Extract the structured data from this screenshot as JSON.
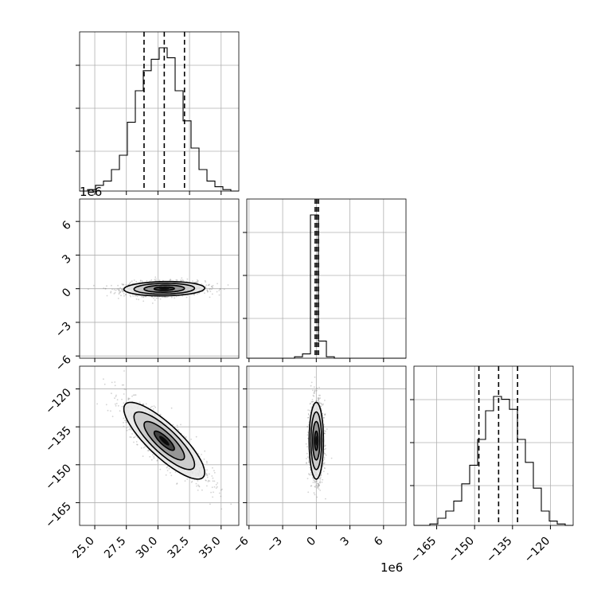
{
  "chart_data": {
    "type": "corner",
    "parameters": [
      {
        "xlim": [
          23.8,
          36.4
        ],
        "ticks": [
          25.0,
          27.5,
          30.0,
          32.5,
          35.0
        ],
        "tick_labels": [
          "25.0",
          "27.5",
          "30.0",
          "32.5",
          "35.0"
        ],
        "quantiles": [
          28.9,
          30.5,
          32.1
        ],
        "hist_edges": [
          23.8,
          24.43,
          25.06,
          25.69,
          26.32,
          26.95,
          27.58,
          28.21,
          28.84,
          29.47,
          30.1,
          30.73,
          31.36,
          31.99,
          32.62,
          33.25,
          33.88,
          34.51,
          35.14,
          35.77,
          36.4
        ],
        "hist_counts": [
          0,
          0.01,
          0.04,
          0.07,
          0.15,
          0.25,
          0.48,
          0.7,
          0.84,
          0.92,
          1.0,
          0.93,
          0.7,
          0.49,
          0.3,
          0.15,
          0.07,
          0.03,
          0.01,
          0
        ]
      },
      {
        "xlim": [
          -6.2,
          8.0
        ],
        "ticks": [
          -6,
          -3,
          0,
          3,
          6
        ],
        "tick_labels": [
          "−6",
          "−3",
          "0",
          "3",
          "6"
        ],
        "offset_label": "1e6",
        "quantiles": [
          -0.1,
          0.05,
          0.2
        ],
        "hist_edges": [
          -6.2,
          -5.49,
          -4.78,
          -4.07,
          -3.36,
          -2.65,
          -1.94,
          -1.23,
          -0.52,
          0.19,
          0.9,
          1.61,
          2.32,
          3.03,
          3.74,
          4.45,
          5.16,
          5.87,
          6.58,
          7.29,
          8.0
        ],
        "hist_counts": [
          0,
          0,
          0,
          0,
          0,
          0,
          0.01,
          0.03,
          1.0,
          0.12,
          0.01,
          0,
          0,
          0,
          0,
          0,
          0,
          0,
          0,
          0
        ]
      },
      {
        "xlim": [
          -174,
          -111
        ],
        "ticks": [
          -165,
          -150,
          -135,
          -120
        ],
        "tick_labels": [
          "−165",
          "−150",
          "−135",
          "−120"
        ],
        "quantiles": [
          -148.3,
          -140.5,
          -133.0
        ],
        "hist_edges": [
          -174,
          -170.85,
          -167.7,
          -164.55,
          -161.4,
          -158.25,
          -155.1,
          -151.95,
          -148.8,
          -145.65,
          -142.5,
          -139.35,
          -136.2,
          -133.05,
          -129.9,
          -126.75,
          -123.6,
          -120.45,
          -117.3,
          -114.15,
          -111
        ],
        "hist_counts": [
          0,
          0,
          0.01,
          0.05,
          0.1,
          0.17,
          0.29,
          0.42,
          0.6,
          0.8,
          0.9,
          0.88,
          0.81,
          0.6,
          0.44,
          0.26,
          0.1,
          0.03,
          0.01,
          0
        ]
      }
    ],
    "covariances": {
      "0_1": {
        "rho": 0.08,
        "center": [
          30.5,
          0.0
        ],
        "sd": [
          1.6,
          0.32
        ]
      },
      "0_2": {
        "rho": -0.83,
        "center": [
          30.5,
          -140.5
        ],
        "sd": [
          1.6,
          7.6
        ]
      },
      "1_2": {
        "rho": 0.0,
        "center": [
          0.0,
          -140.5
        ],
        "sd": [
          0.32,
          7.6
        ]
      }
    },
    "colors": {
      "line": "#000000",
      "grid": "#b0b0b0",
      "points": "#808080"
    }
  }
}
